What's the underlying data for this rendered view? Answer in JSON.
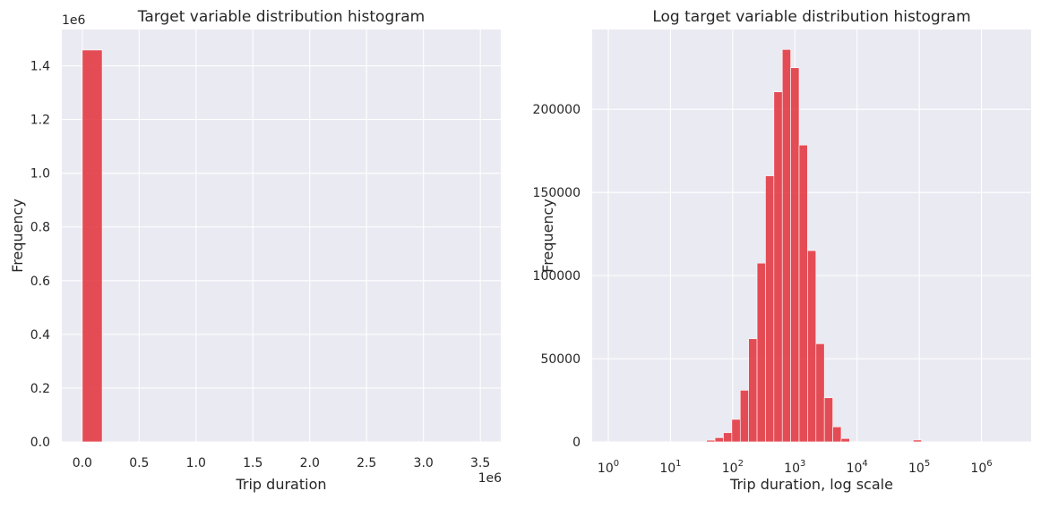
{
  "chart_data": [
    {
      "type": "bar",
      "title": "Target variable distribution histogram",
      "xlabel": "Trip duration",
      "ylabel": "Frequency",
      "x_offset_label": "1e6",
      "y_offset_label": "1e6",
      "xlim": [
        -180000,
        3680000
      ],
      "ylim": [
        0,
        1535000
      ],
      "xticks": [
        0,
        500000,
        1000000,
        1500000,
        2000000,
        2500000,
        3000000,
        3500000
      ],
      "xtick_labels": [
        "0.0",
        "0.5",
        "1.0",
        "1.5",
        "2.0",
        "2.5",
        "3.0",
        "3.5"
      ],
      "yticks": [
        0,
        200000,
        400000,
        600000,
        800000,
        1000000,
        1200000,
        1400000
      ],
      "ytick_labels": [
        "0.0",
        "0.2",
        "0.4",
        "0.6",
        "0.8",
        "1.0",
        "1.2",
        "1.4"
      ],
      "grid": true,
      "bar_color": "#e3363f",
      "bins": [
        {
          "x0": 0,
          "x1": 175000,
          "count": 1458600
        }
      ]
    },
    {
      "type": "bar",
      "title": "Log target variable distribution histogram",
      "xlabel": "Trip duration, log scale",
      "ylabel": "Frequency",
      "x_scale": "log",
      "xlim": [
        0.55,
        6300000
      ],
      "ylim": [
        0,
        248000
      ],
      "xticks": [
        1,
        10,
        100,
        1000,
        10000,
        100000,
        1000000
      ],
      "xtick_exponents": [
        "0",
        "1",
        "2",
        "3",
        "4",
        "5",
        "6"
      ],
      "xtick_base": "10",
      "yticks": [
        0,
        50000,
        100000,
        150000,
        200000
      ],
      "ytick_labels": [
        "0",
        "50000",
        "100000",
        "150000",
        "200000"
      ],
      "grid": true,
      "bar_color": "#e3363f",
      "bins": [
        {
          "x0": 38.0,
          "x1": 51.9,
          "count": 1000
        },
        {
          "x0": 51.9,
          "x1": 70.9,
          "count": 2500
        },
        {
          "x0": 70.9,
          "x1": 96.8,
          "count": 5500
        },
        {
          "x0": 96.8,
          "x1": 132.2,
          "count": 13500
        },
        {
          "x0": 132.2,
          "x1": 180.5,
          "count": 31000
        },
        {
          "x0": 180.5,
          "x1": 246.5,
          "count": 62000
        },
        {
          "x0": 246.5,
          "x1": 336.6,
          "count": 107500
        },
        {
          "x0": 336.6,
          "x1": 459.6,
          "count": 160000
        },
        {
          "x0": 459.6,
          "x1": 627.6,
          "count": 210500
        },
        {
          "x0": 627.6,
          "x1": 857.0,
          "count": 236000
        },
        {
          "x0": 857.0,
          "x1": 1170.3,
          "count": 225000
        },
        {
          "x0": 1170.3,
          "x1": 1598.1,
          "count": 178500
        },
        {
          "x0": 1598.1,
          "x1": 2182.3,
          "count": 115000
        },
        {
          "x0": 2182.3,
          "x1": 2980.0,
          "count": 59000
        },
        {
          "x0": 2980.0,
          "x1": 4069.4,
          "count": 26500
        },
        {
          "x0": 4069.4,
          "x1": 5556.9,
          "count": 9000
        },
        {
          "x0": 5556.9,
          "x1": 7588.3,
          "count": 2000
        },
        {
          "x0": 80000,
          "x1": 109000,
          "count": 1100
        }
      ]
    }
  ]
}
